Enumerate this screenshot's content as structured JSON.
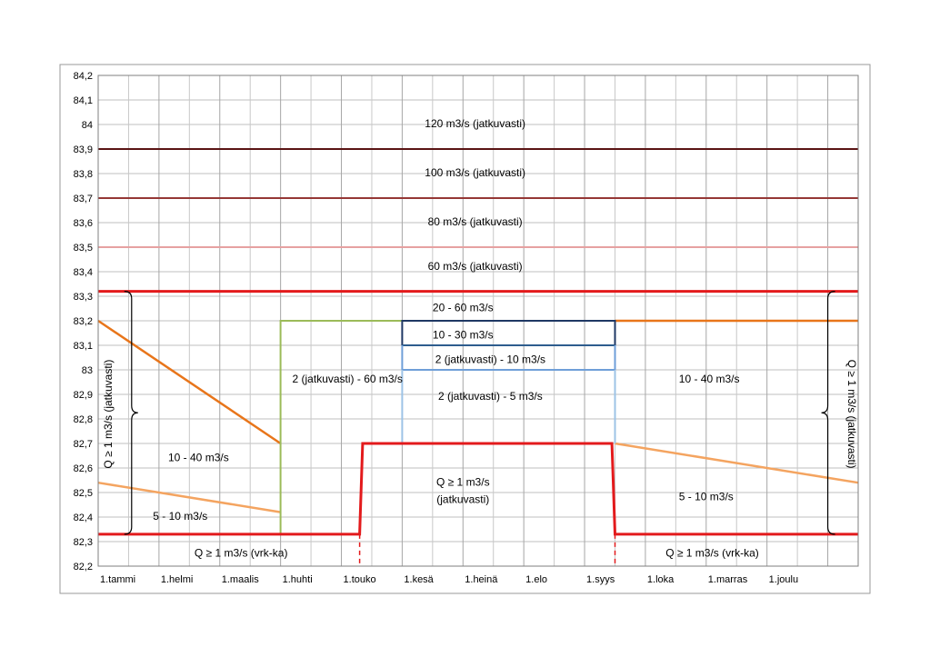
{
  "chart_data": {
    "type": "line",
    "title": "",
    "xlabel": "",
    "ylabel": "",
    "ylim": [
      82.2,
      84.2
    ],
    "xlim": [
      0,
      12.5
    ],
    "y_ticks": [
      "82,2",
      "82,3",
      "82,4",
      "82,5",
      "82,6",
      "82,7",
      "82,8",
      "82,9",
      "83",
      "83,1",
      "83,2",
      "83,3",
      "83,4",
      "83,5",
      "83,6",
      "83,7",
      "83,8",
      "83,9",
      "84",
      "84,1",
      "84,2"
    ],
    "x_ticks": [
      {
        "x": 0,
        "label": "1.tammi"
      },
      {
        "x": 1,
        "label": "1.helmi"
      },
      {
        "x": 2,
        "label": "1.maalis"
      },
      {
        "x": 3,
        "label": "1.huhti"
      },
      {
        "x": 4,
        "label": "1.touko"
      },
      {
        "x": 5,
        "label": "1.kesä"
      },
      {
        "x": 6,
        "label": "1.heinä"
      },
      {
        "x": 7,
        "label": "1.elo"
      },
      {
        "x": 8,
        "label": "1.syys"
      },
      {
        "x": 9,
        "label": "1.loka"
      },
      {
        "x": 10,
        "label": "1.marras"
      },
      {
        "x": 11,
        "label": "1.joulu"
      }
    ],
    "minor_x_per_month": 2,
    "grid": true,
    "series": [
      {
        "color": "#5a1414",
        "width": 2,
        "points": [
          [
            0,
            83.9
          ],
          [
            12.5,
            83.9
          ]
        ]
      },
      {
        "color": "#953735",
        "width": 2,
        "points": [
          [
            0,
            83.7
          ],
          [
            12.5,
            83.7
          ]
        ]
      },
      {
        "color": "#e6a1a1",
        "width": 2,
        "points": [
          [
            0,
            83.5
          ],
          [
            12.5,
            83.5
          ]
        ]
      },
      {
        "color": "#e31a1c",
        "width": 3,
        "points": [
          [
            0,
            83.32
          ],
          [
            12.5,
            83.32
          ]
        ]
      },
      {
        "color": "#e8751a",
        "width": 2.5,
        "points": [
          [
            0,
            83.2
          ],
          [
            3,
            82.7
          ]
        ]
      },
      {
        "color": "#f4a460",
        "width": 2.5,
        "points": [
          [
            0,
            82.54
          ],
          [
            3,
            82.42
          ]
        ]
      },
      {
        "color": "#9bbb59",
        "width": 2,
        "points": [
          [
            3,
            82.33
          ],
          [
            3,
            83.2
          ],
          [
            5,
            83.2
          ]
        ]
      },
      {
        "color": "#e8751a",
        "width": 2.5,
        "points": [
          [
            8.5,
            83.2
          ],
          [
            12.5,
            83.2
          ]
        ]
      },
      {
        "color": "#f4a460",
        "width": 2.5,
        "points": [
          [
            8.5,
            82.7
          ],
          [
            12.5,
            82.54
          ]
        ]
      },
      {
        "color": "#1f3864",
        "width": 2,
        "points": [
          [
            5,
            83.1
          ],
          [
            5,
            83.2
          ],
          [
            8.5,
            83.2
          ],
          [
            8.5,
            83.1
          ]
        ]
      },
      {
        "color": "#2e5d8e",
        "width": 2,
        "points": [
          [
            5,
            83.1
          ],
          [
            8.5,
            83.1
          ]
        ]
      },
      {
        "color": "#6f9fd8",
        "width": 2,
        "points": [
          [
            5,
            83.0
          ],
          [
            5,
            83.1
          ]
        ]
      },
      {
        "color": "#6f9fd8",
        "width": 2,
        "points": [
          [
            8.5,
            83.0
          ],
          [
            8.5,
            83.1
          ]
        ]
      },
      {
        "color": "#6f9fd8",
        "width": 2,
        "points": [
          [
            5,
            83.0
          ],
          [
            8.5,
            83.0
          ]
        ]
      },
      {
        "color": "#9dc3e6",
        "width": 2,
        "points": [
          [
            5,
            82.7
          ],
          [
            5,
            83.0
          ]
        ]
      },
      {
        "color": "#9dc3e6",
        "width": 2,
        "points": [
          [
            8.5,
            82.7
          ],
          [
            8.5,
            83.0
          ]
        ]
      },
      {
        "color": "#e31a1c",
        "width": 3,
        "points": [
          [
            0,
            82.33
          ],
          [
            4.3,
            82.33
          ],
          [
            4.35,
            82.7
          ],
          [
            8.45,
            82.7
          ],
          [
            8.5,
            82.33
          ],
          [
            12.5,
            82.33
          ]
        ]
      },
      {
        "color": "#e31a1c",
        "width": 1.5,
        "dashed": true,
        "points": [
          [
            4.3,
            82.33
          ],
          [
            4.3,
            82.2
          ]
        ]
      },
      {
        "color": "#e31a1c",
        "width": 1.5,
        "dashed": true,
        "points": [
          [
            8.5,
            82.33
          ],
          [
            8.5,
            82.2
          ]
        ]
      }
    ],
    "braces": [
      {
        "x": 0.55,
        "y1": 82.33,
        "y2": 83.32,
        "side": "left"
      },
      {
        "x": 12.0,
        "y1": 82.33,
        "y2": 83.32,
        "side": "right"
      }
    ],
    "annotations": [
      {
        "text": "120 m3/s (jatkuvasti)",
        "x": 6.2,
        "y": 84.0
      },
      {
        "text": "100 m3/s (jatkuvasti)",
        "x": 6.2,
        "y": 83.8
      },
      {
        "text": "80 m3/s (jatkuvasti)",
        "x": 6.2,
        "y": 83.6
      },
      {
        "text": "60 m3/s (jatkuvasti)",
        "x": 6.2,
        "y": 83.42
      },
      {
        "text": "20 - 60 m3/s",
        "x": 6.0,
        "y": 83.25
      },
      {
        "text": "10 - 30 m3/s",
        "x": 6.0,
        "y": 83.14
      },
      {
        "text": "2 (jatkuvasti) - 10 m3/s",
        "x": 6.45,
        "y": 83.04
      },
      {
        "text": "2 (jatkuvasti) - 5 m3/s",
        "x": 6.45,
        "y": 82.89
      },
      {
        "text": "2 (jatkuvasti) - 60 m3/s",
        "x": 4.1,
        "y": 82.96
      },
      {
        "text": "10 - 40 m3/s",
        "x": 1.65,
        "y": 82.64
      },
      {
        "text": "5 - 10 m3/s",
        "x": 1.35,
        "y": 82.4
      },
      {
        "text": "10 - 40 m3/s",
        "x": 10.05,
        "y": 82.96
      },
      {
        "text": "5 - 10 m3/s",
        "x": 10.0,
        "y": 82.48
      },
      {
        "text": "Q ≥ 1 m3/s",
        "x": 6.0,
        "y": 82.54
      },
      {
        "text": "(jatkuvasti)",
        "x": 6.0,
        "y": 82.47
      },
      {
        "text": "Q ≥ 1 m3/s (vrk-ka)",
        "x": 2.35,
        "y": 82.25
      },
      {
        "text": "Q ≥ 1 m3/s (vrk-ka)",
        "x": 10.1,
        "y": 82.25
      },
      {
        "text": "Q ≥ 1 m3/s (jatkuvasti)",
        "x": 0.18,
        "y": 82.82,
        "rotate": -90
      },
      {
        "text": "Q ≥ 1 m3/s (jatkuvasti)",
        "x": 12.38,
        "y": 82.82,
        "rotate": 90
      }
    ]
  }
}
